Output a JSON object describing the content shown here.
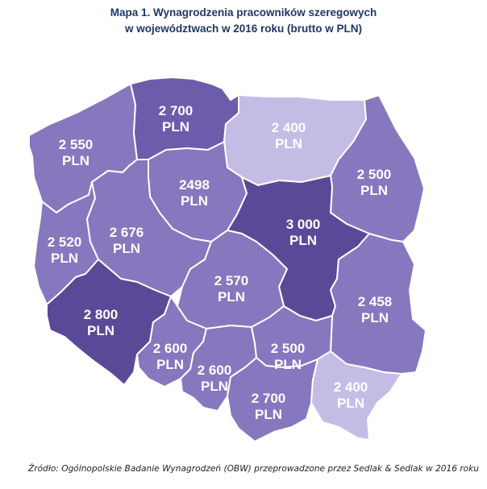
{
  "title": {
    "line1": "Mapa 1. Wynagrodzenia pracowników szeregowych",
    "line2": "w województwach w 2016 roku (brutto w PLN)"
  },
  "colors": {
    "very_dark": "#5b4997",
    "dark": "#6d5cab",
    "medium": "#8677be",
    "light": "#c5bce6",
    "border": "#ffffff",
    "title": "#1f3864"
  },
  "regions": [
    {
      "id": "zachodniopomorskie",
      "value": "2 550",
      "unit": "PLN",
      "shade": "medium"
    },
    {
      "id": "pomorskie",
      "value": "2 700",
      "unit": "PLN",
      "shade": "dark"
    },
    {
      "id": "warminsko-mazurskie",
      "value": "2 400",
      "unit": "PLN",
      "shade": "light"
    },
    {
      "id": "podlaskie",
      "value": "2 500",
      "unit": "PLN",
      "shade": "medium"
    },
    {
      "id": "kujawsko-pomorskie",
      "value": "2498",
      "unit": "PLN",
      "shade": "medium"
    },
    {
      "id": "mazowieckie",
      "value": "3 000",
      "unit": "PLN",
      "shade": "very_dark"
    },
    {
      "id": "lubuskie",
      "value": "2 520",
      "unit": "PLN",
      "shade": "medium"
    },
    {
      "id": "wielkopolskie",
      "value": "2 676",
      "unit": "PLN",
      "shade": "medium"
    },
    {
      "id": "lodzkie",
      "value": "2 570",
      "unit": "PLN",
      "shade": "medium"
    },
    {
      "id": "lubelskie",
      "value": "2 458",
      "unit": "PLN",
      "shade": "medium"
    },
    {
      "id": "dolnoslaskie",
      "value": "2 800",
      "unit": "PLN",
      "shade": "very_dark"
    },
    {
      "id": "opolskie",
      "value": "2 600",
      "unit": "PLN",
      "shade": "medium"
    },
    {
      "id": "slaskie",
      "value": "2 600",
      "unit": "PLN",
      "shade": "medium"
    },
    {
      "id": "swietokrzyskie",
      "value": "2 500",
      "unit": "PLN",
      "shade": "medium"
    },
    {
      "id": "malopolskie",
      "value": "2 700",
      "unit": "PLN",
      "shade": "medium"
    },
    {
      "id": "podkarpackie",
      "value": "2 400",
      "unit": "PLN",
      "shade": "light"
    }
  ],
  "source": "Źródło: Ogólnopolskie Badanie Wynagrodzeń (OBW) przeprowadzone przez Sedlak & Sedlak w 2016 roku"
}
